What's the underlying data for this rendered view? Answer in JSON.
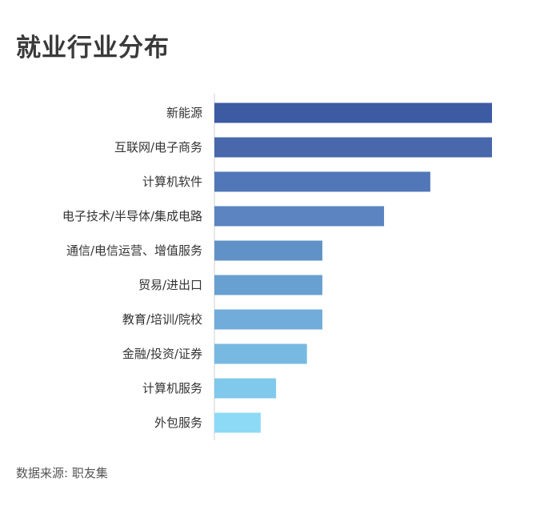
{
  "chart_data": {
    "type": "bar",
    "orientation": "horizontal",
    "title": "就业行业分布",
    "xlabel": "",
    "ylabel": "",
    "categories": [
      "新能源",
      "互联网/电子商务",
      "计算机软件",
      "电子技术/半导体/集成电路",
      "通信/电信运营、增值服务",
      "贸易/进出口",
      "教育/培训/院校",
      "金融/投资/证券",
      "计算机服务",
      "外包服务"
    ],
    "values": [
      18,
      18,
      14,
      11,
      7,
      7,
      7,
      6,
      4,
      3
    ],
    "xlim": [
      0,
      18
    ],
    "grid": false,
    "colors": [
      "#3c5ba3",
      "#4868ab",
      "#5277b8",
      "#5b84c1",
      "#6192c7",
      "#68a0d1",
      "#71acdb",
      "#78b9e1",
      "#80c9ec",
      "#8cdaf6"
    ]
  },
  "source": "数据来源: 职友集"
}
